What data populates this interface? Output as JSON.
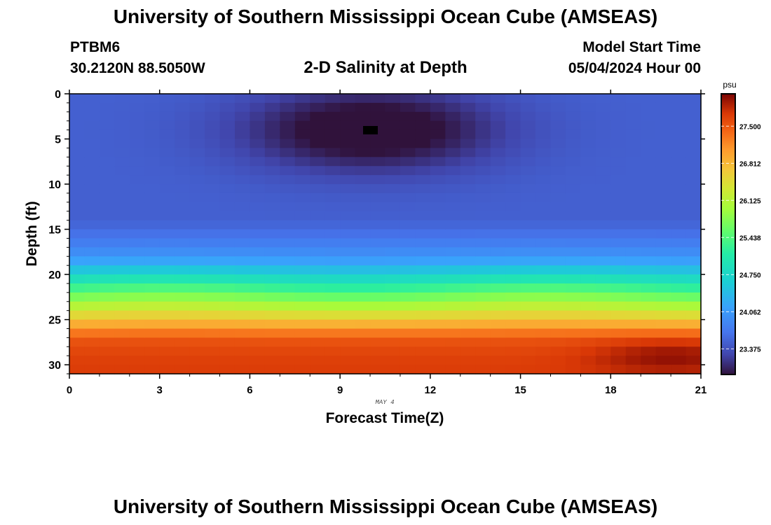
{
  "header": {
    "title": "University of Southern Mississippi Ocean Cube (AMSEAS)",
    "station_name": "PTBM6",
    "station_coords": "30.2120N  88.5050W",
    "plot_title": "2-D Salinity at Depth",
    "model_start_label": "Model Start Time",
    "model_start_value": "05/04/2024 Hour 00"
  },
  "footer": {
    "title": "University of Southern Mississippi Ocean Cube (AMSEAS)"
  },
  "chart_data": {
    "type": "heatmap",
    "title": "2-D Salinity at Depth",
    "xlabel": "Forecast Time(Z)",
    "ylabel": "Depth (ft)",
    "date_label": "MAY 4",
    "xlim": [
      0,
      21
    ],
    "ylim": [
      0,
      31
    ],
    "x_ticks": [
      0,
      3,
      6,
      9,
      12,
      15,
      18,
      21
    ],
    "x_tick_labels": [
      "0",
      "3",
      "6",
      "9",
      "12",
      "15",
      "18",
      "21"
    ],
    "y_ticks": [
      0,
      5,
      10,
      15,
      20,
      25,
      30
    ],
    "y_tick_labels": [
      "0",
      "5",
      "10",
      "15",
      "20",
      "25",
      "30"
    ],
    "colorbar": {
      "unit": "psu",
      "range": [
        22.9,
        28.1
      ],
      "ticks": [
        23.375,
        24.062,
        24.75,
        25.438,
        26.125,
        26.812,
        27.5
      ],
      "tick_labels": [
        "23.375",
        "24.062",
        "24.750",
        "25.438",
        "26.125",
        "26.812",
        "27.500"
      ]
    },
    "surface_profile": {
      "depth_ft": [
        0,
        14,
        16,
        18,
        19,
        20,
        21,
        22,
        23,
        24,
        25,
        26,
        27,
        28,
        30,
        31
      ],
      "salinity_psu": [
        23.5,
        23.5,
        23.7,
        24.0,
        24.3,
        24.7,
        25.1,
        25.5,
        25.9,
        26.3,
        26.7,
        27.1,
        27.5,
        27.6,
        27.7,
        27.7
      ]
    },
    "fresh_anomaly": {
      "center_time_h": 10,
      "center_depth_ft": 4,
      "min_salinity_psu": 23.0
    },
    "salty_anomaly": {
      "center_time_h": 20,
      "center_depth_ft": 29,
      "max_salinity_psu": 28.0
    }
  }
}
